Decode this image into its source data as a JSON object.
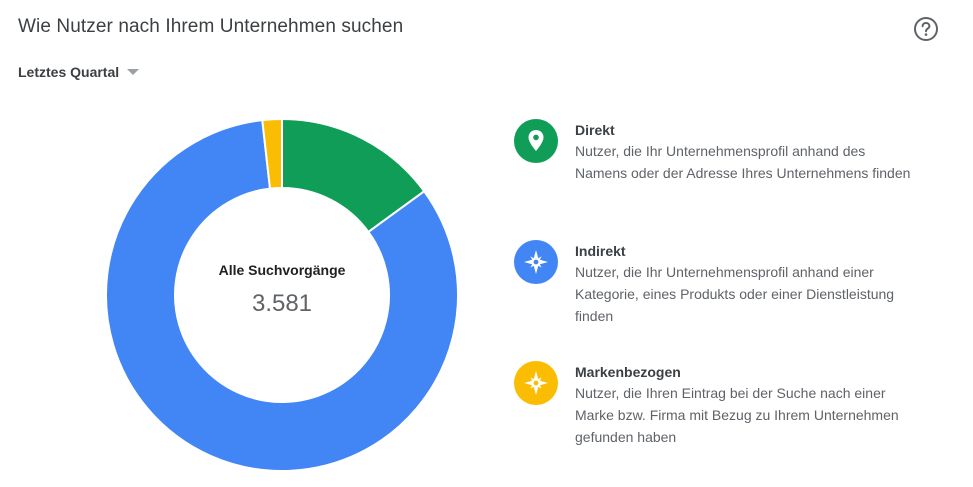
{
  "header": {
    "title": "Wie Nutzer nach Ihrem Unternehmen suchen",
    "help_icon": "help-circle-icon"
  },
  "filter": {
    "period_label": "Letztes Quartal"
  },
  "chart_data": {
    "type": "pie",
    "donut": true,
    "total_label": "Alle Suchvorgänge",
    "total_value": "3.581",
    "categories": [
      "Direkt",
      "Indirekt",
      "Markenbezogen"
    ],
    "values": [
      536,
      2981,
      64
    ],
    "colors": [
      "#0f9d58",
      "#4285f4",
      "#fbbc04"
    ]
  },
  "legend": [
    {
      "name": "Direkt",
      "description": "Nutzer, die Ihr Unternehmensprofil anhand des Namens oder der Adresse Ihres Unternehmens finden",
      "icon": "location-pin-icon",
      "color": "#0f9d58"
    },
    {
      "name": "Indirekt",
      "description": "Nutzer, die Ihr Unternehmensprofil anhand einer Kategorie, eines Produkts oder einer Dienstleistung finden",
      "icon": "compass-icon",
      "color": "#4285f4"
    },
    {
      "name": "Markenbezogen",
      "description": "Nutzer, die Ihren Eintrag bei der Suche nach einer Marke bzw. Firma mit Bezug zu Ihrem Unternehmen gefunden haben",
      "icon": "compass-icon",
      "color": "#fbbc04"
    }
  ]
}
